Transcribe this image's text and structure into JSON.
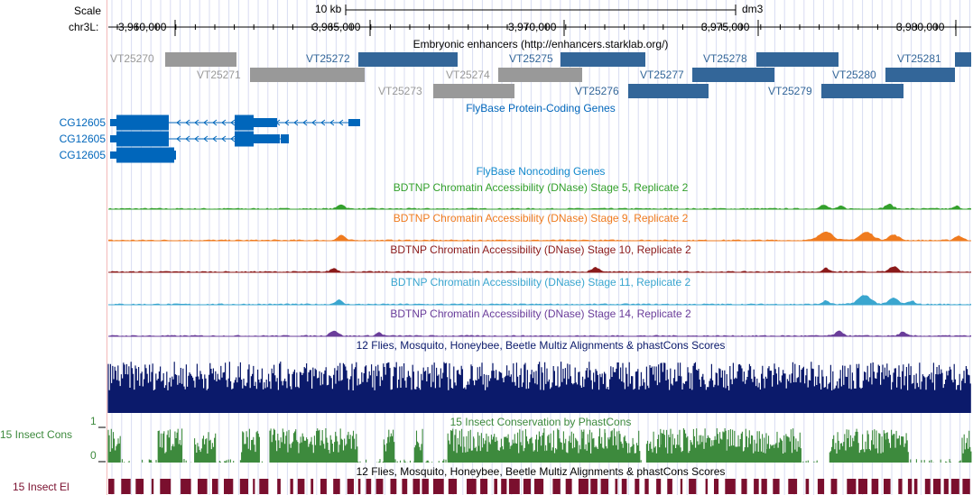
{
  "scale": {
    "label": "Scale",
    "bar_label": "10 kb",
    "assembly": "dm3"
  },
  "ruler": {
    "chrom_label": "chr3L:",
    "ticks": [
      "3,960,000",
      "3,965,000",
      "3,970,000",
      "3,975,000",
      "3,980,000"
    ]
  },
  "tracks": {
    "enhancers": {
      "title": "Embryonic enhancers (http://enhancers.starklab.org/)",
      "color_active": "#336699",
      "color_inactive": "#999999",
      "features": [
        {
          "name": "VT25270",
          "active": false
        },
        {
          "name": "VT25271",
          "active": false
        },
        {
          "name": "VT25272",
          "active": true
        },
        {
          "name": "VT25273",
          "active": false
        },
        {
          "name": "VT25274",
          "active": false
        },
        {
          "name": "VT25275",
          "active": true
        },
        {
          "name": "VT25276",
          "active": true
        },
        {
          "name": "VT25277",
          "active": true
        },
        {
          "name": "VT25278",
          "active": true
        },
        {
          "name": "VT25279",
          "active": true
        },
        {
          "name": "VT25280",
          "active": true
        },
        {
          "name": "VT25281",
          "active": true
        }
      ]
    },
    "genes": {
      "title": "FlyBase Protein-Coding Genes",
      "color": "#0066bb",
      "transcripts": [
        "CG12605",
        "CG12605",
        "CG12605"
      ]
    },
    "noncoding": {
      "title": "FlyBase Noncoding Genes",
      "color": "#1188cc"
    },
    "dnase": [
      {
        "title": "BDTNP Chromatin Accessibility (DNase) Stage 5, Replicate 2",
        "color": "#33a02c"
      },
      {
        "title": "BDTNP Chromatin Accessibility (DNase) Stage 9, Replicate 2",
        "color": "#ef7b1f"
      },
      {
        "title": "BDTNP Chromatin Accessibility (DNase) Stage 10, Replicate 2",
        "color": "#8b1a1a"
      },
      {
        "title": "BDTNP Chromatin Accessibility (DNase) Stage 11, Replicate 2",
        "color": "#3aa6cf"
      },
      {
        "title": "BDTNP Chromatin Accessibility (DNase) Stage 14, Replicate 2",
        "color": "#6a3d9a"
      }
    ],
    "multiz": {
      "title": "12 Flies, Mosquito, Honeybee, Beetle Multiz Alignments & phastCons Scores",
      "color": "#0b1a6b"
    },
    "phastcons": {
      "title": "15 Insect Conservation by PhastCons",
      "left_label": "15 Insect Cons",
      "axis_max": "1",
      "axis_min": "0",
      "color": "#3d8a3d"
    },
    "elements": {
      "title": "12 Flies, Mosquito, Honeybee, Beetle Multiz Alignments & phastCons Scores",
      "left_label": "15 Insect El",
      "color": "#7a0f2e"
    }
  }
}
